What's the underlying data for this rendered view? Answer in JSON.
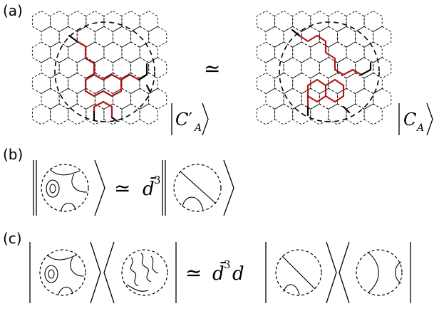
{
  "labels": {
    "panel_a": "(a)",
    "panel_b": "(b)",
    "panel_c": "(c)"
  },
  "panel_a": {
    "left_state": "C′",
    "left_state_sub": "A",
    "right_state": "C",
    "right_state_sub": "A",
    "relation": "≃"
  },
  "panel_b": {
    "relation": "≃",
    "coefficient": "d̄",
    "exponent": "3"
  },
  "panel_c": {
    "relation": "≃",
    "coefficient": "d̄",
    "exponent": "3",
    "trailing": "d"
  },
  "colors": {
    "string_red": "#b01717",
    "ink": "#000000"
  }
}
